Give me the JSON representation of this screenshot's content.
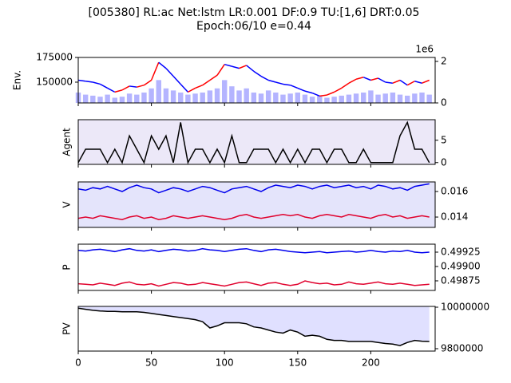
{
  "chart_data": [
    {
      "type": "price_volume",
      "title": "[005380] RL:ac Net:lstm LR:0.001 DF:0.9 TU:[1,6] DRT:0.05",
      "subtitle": "Epoch:06/10 e=0.44",
      "ylabel": "Env.",
      "up_color": "#ff0000",
      "down_color": "#0000ff",
      "volume_color": "#b4b4ff",
      "x": [
        0,
        5,
        10,
        15,
        20,
        25,
        30,
        35,
        40,
        45,
        50,
        55,
        60,
        65,
        70,
        75,
        80,
        85,
        90,
        95,
        100,
        105,
        110,
        115,
        120,
        125,
        130,
        135,
        140,
        145,
        150,
        155,
        160,
        165,
        170,
        175,
        180,
        185,
        190,
        195,
        200,
        205,
        210,
        215,
        220,
        225,
        230,
        235,
        240
      ],
      "values": [
        152000,
        151000,
        150000,
        148000,
        144000,
        140000,
        142000,
        146000,
        145000,
        147000,
        152000,
        170000,
        164000,
        156000,
        148000,
        140000,
        144000,
        147000,
        152000,
        157000,
        168000,
        166000,
        164000,
        167000,
        161000,
        156000,
        152000,
        150000,
        148000,
        147000,
        144000,
        141000,
        139000,
        136000,
        137000,
        140000,
        144000,
        149000,
        153000,
        155000,
        152000,
        154000,
        150000,
        149000,
        152000,
        147000,
        151000,
        149000,
        152000
      ],
      "volume": [
        500000,
        400000,
        350000,
        300000,
        400000,
        250000,
        300000,
        450000,
        400000,
        500000,
        700000,
        1100000,
        700000,
        600000,
        500000,
        400000,
        450000,
        500000,
        600000,
        700000,
        1100000,
        800000,
        600000,
        700000,
        500000,
        450000,
        600000,
        500000,
        400000,
        450000,
        500000,
        400000,
        300000,
        350000,
        250000,
        300000,
        350000,
        400000,
        450000,
        500000,
        600000,
        400000,
        450000,
        500000,
        400000,
        350000,
        450000,
        500000,
        400000
      ],
      "ylim": [
        129000,
        175000
      ],
      "yticks": [
        150000,
        175000
      ],
      "y2lim": [
        0,
        2190000
      ],
      "y2ticks": [
        0,
        {
          "value": 2000000,
          "label": "2"
        }
      ],
      "y2_offset_label": "1e6"
    },
    {
      "type": "line",
      "ylabel": "Agent",
      "background": "#ece8f8",
      "ylim": [
        -0.4,
        9.6
      ],
      "yticks": [
        0,
        5
      ],
      "x": [
        0,
        5,
        10,
        15,
        20,
        25,
        30,
        35,
        40,
        45,
        50,
        55,
        60,
        65,
        70,
        75,
        80,
        85,
        90,
        95,
        100,
        105,
        110,
        115,
        120,
        125,
        130,
        135,
        140,
        145,
        150,
        155,
        160,
        165,
        170,
        175,
        180,
        185,
        190,
        195,
        200,
        205,
        210,
        215,
        220,
        225,
        230,
        235,
        240
      ],
      "series": [
        {
          "color": "#000000",
          "values": [
            0,
            3,
            3,
            3,
            0,
            3,
            0,
            6,
            3,
            0,
            6,
            3,
            6,
            0,
            9,
            0,
            3,
            3,
            0,
            3,
            0,
            6,
            0,
            0,
            3,
            3,
            3,
            0,
            3,
            0,
            3,
            0,
            3,
            3,
            0,
            3,
            3,
            0,
            0,
            3,
            0,
            0,
            0,
            0,
            6,
            9,
            3,
            3,
            0
          ]
        }
      ]
    },
    {
      "type": "line",
      "ylabel": "V",
      "background": "#e4e4fb",
      "ylim": [
        0.01319,
        0.01675
      ],
      "yticks": [
        0.014,
        0.016
      ],
      "x": [
        0,
        5,
        10,
        15,
        20,
        25,
        30,
        35,
        40,
        45,
        50,
        55,
        60,
        65,
        70,
        75,
        80,
        85,
        90,
        95,
        100,
        105,
        110,
        115,
        120,
        125,
        130,
        135,
        140,
        145,
        150,
        155,
        160,
        165,
        170,
        175,
        180,
        185,
        190,
        195,
        200,
        205,
        210,
        215,
        220,
        225,
        230,
        235,
        240
      ],
      "series": [
        {
          "color": "#0000ee",
          "values": [
            0.0162,
            0.0161,
            0.0163,
            0.0162,
            0.0164,
            0.0162,
            0.016,
            0.0163,
            0.0165,
            0.0163,
            0.0162,
            0.0159,
            0.0161,
            0.0163,
            0.0162,
            0.016,
            0.0162,
            0.0164,
            0.0163,
            0.0161,
            0.0159,
            0.0162,
            0.0163,
            0.0164,
            0.0162,
            0.016,
            0.0163,
            0.0165,
            0.0164,
            0.0163,
            0.0165,
            0.0164,
            0.0162,
            0.0164,
            0.0165,
            0.0163,
            0.0164,
            0.0165,
            0.0163,
            0.0164,
            0.0162,
            0.0165,
            0.0164,
            0.0162,
            0.0163,
            0.0161,
            0.0164,
            0.0165,
            0.0166
          ]
        },
        {
          "color": "#e0002c",
          "values": [
            0.0139,
            0.014,
            0.0139,
            0.0141,
            0.014,
            0.0139,
            0.0138,
            0.014,
            0.0141,
            0.0139,
            0.014,
            0.0138,
            0.0139,
            0.0141,
            0.014,
            0.0139,
            0.014,
            0.0141,
            0.014,
            0.0139,
            0.0138,
            0.0139,
            0.0141,
            0.0142,
            0.014,
            0.0139,
            0.014,
            0.0141,
            0.0142,
            0.0141,
            0.0142,
            0.014,
            0.0139,
            0.0141,
            0.0142,
            0.0141,
            0.014,
            0.0142,
            0.0141,
            0.014,
            0.0139,
            0.0141,
            0.0142,
            0.014,
            0.0141,
            0.0139,
            0.014,
            0.0141,
            0.014
          ]
        }
      ]
    },
    {
      "type": "line",
      "ylabel": "P",
      "background": "#ffffff",
      "ylim": [
        0.498583,
        0.499389
      ],
      "yticks": [
        0.49875,
        {
          "value": 0.499,
          "label": "0.49900"
        },
        0.49925
      ],
      "x": [
        0,
        5,
        10,
        15,
        20,
        25,
        30,
        35,
        40,
        45,
        50,
        55,
        60,
        65,
        70,
        75,
        80,
        85,
        90,
        95,
        100,
        105,
        110,
        115,
        120,
        125,
        130,
        135,
        140,
        145,
        150,
        155,
        160,
        165,
        170,
        175,
        180,
        185,
        190,
        195,
        200,
        205,
        210,
        215,
        220,
        225,
        230,
        235,
        240
      ],
      "series": [
        {
          "color": "#0000ee",
          "values": [
            0.49928,
            0.49927,
            0.49929,
            0.4993,
            0.49928,
            0.49926,
            0.49929,
            0.49931,
            0.49928,
            0.49927,
            0.49929,
            0.49926,
            0.49928,
            0.4993,
            0.49929,
            0.49927,
            0.49928,
            0.49931,
            0.49929,
            0.49928,
            0.49926,
            0.49928,
            0.4993,
            0.49931,
            0.49928,
            0.49926,
            0.49929,
            0.4993,
            0.49928,
            0.49926,
            0.49925,
            0.49924,
            0.49925,
            0.49926,
            0.49924,
            0.49925,
            0.49926,
            0.49927,
            0.49925,
            0.49926,
            0.49928,
            0.49926,
            0.49925,
            0.49927,
            0.49926,
            0.49928,
            0.49925,
            0.49924,
            0.49925
          ]
        },
        {
          "color": "#e0002c",
          "values": [
            0.4987,
            0.49869,
            0.49868,
            0.49871,
            0.49869,
            0.49867,
            0.49871,
            0.49873,
            0.49869,
            0.49868,
            0.4987,
            0.49866,
            0.49869,
            0.49872,
            0.49871,
            0.49868,
            0.49869,
            0.49872,
            0.4987,
            0.49868,
            0.49866,
            0.49869,
            0.49872,
            0.49873,
            0.4987,
            0.49867,
            0.49871,
            0.49872,
            0.49869,
            0.49867,
            0.49869,
            0.49875,
            0.49872,
            0.4987,
            0.49871,
            0.49868,
            0.49869,
            0.49873,
            0.4987,
            0.49869,
            0.49871,
            0.49873,
            0.4987,
            0.49869,
            0.49871,
            0.49869,
            0.49867,
            0.49868,
            0.49869
          ]
        }
      ]
    },
    {
      "type": "area",
      "ylabel": "PV",
      "fill": "#e0e0ff",
      "ylim": [
        9788462,
        10003846
      ],
      "yticks": [
        9800000,
        10000000
      ],
      "xlim": [
        0,
        244
      ],
      "xticks": [
        0,
        50,
        100,
        150,
        200
      ],
      "x": [
        0,
        5,
        10,
        15,
        20,
        25,
        30,
        35,
        40,
        45,
        50,
        55,
        60,
        65,
        70,
        75,
        80,
        85,
        90,
        95,
        100,
        105,
        110,
        115,
        120,
        125,
        130,
        135,
        140,
        145,
        150,
        155,
        160,
        165,
        170,
        175,
        180,
        185,
        190,
        195,
        200,
        205,
        210,
        215,
        220,
        225,
        230,
        235,
        240
      ],
      "series": [
        {
          "color": "#000000",
          "values": [
            9995000,
            9990000,
            9985000,
            9982000,
            9980000,
            9980000,
            9978000,
            9978000,
            9978000,
            9975000,
            9970000,
            9965000,
            9960000,
            9955000,
            9950000,
            9945000,
            9940000,
            9930000,
            9900000,
            9910000,
            9925000,
            9925000,
            9925000,
            9920000,
            9905000,
            9900000,
            9890000,
            9880000,
            9875000,
            9890000,
            9880000,
            9860000,
            9865000,
            9860000,
            9845000,
            9840000,
            9840000,
            9835000,
            9835000,
            9835000,
            9835000,
            9830000,
            9825000,
            9822000,
            9815000,
            9830000,
            9840000,
            9836000,
            9835000
          ]
        }
      ]
    }
  ]
}
